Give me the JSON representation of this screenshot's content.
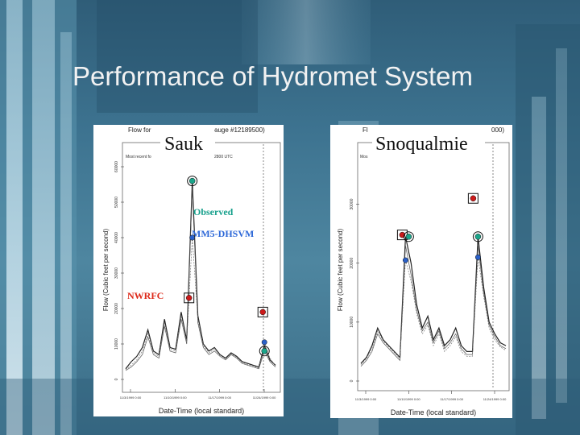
{
  "slide": {
    "title": "Performance of Hydromet System"
  },
  "chart_data": [
    {
      "type": "line",
      "station_label": "Sauk",
      "header_text": "Flow for",
      "header_text_right": "auge #12189500)",
      "subheader_text": "Most recent fo",
      "subheader_text_right": "2800 UTC",
      "xlabel": "Date-Time (local standard)",
      "ylabel": "Flow (Cubic feet per second)",
      "ylim": [
        0,
        60000
      ],
      "y_ticks": [
        "0",
        "10000",
        "20000",
        "30000",
        "40000",
        "50000",
        "60000"
      ],
      "x_ticks": [
        "11/3/1999 0:00",
        "11/10/1999 0:00",
        "11/17/1999 0:00",
        "11/24/1999 0:00"
      ],
      "legend": {
        "observed": "Observed",
        "model": "MM5-DHSVM",
        "nwrfc": "NWRFC"
      },
      "series": [
        {
          "values": [
            3000,
            5000,
            6500,
            9000,
            14000,
            8000,
            7000,
            17000,
            9000,
            8500,
            19000,
            11000,
            56000,
            18000,
            10000,
            8000,
            9000,
            7000,
            6000,
            7500,
            6500,
            5000,
            4500,
            4000,
            3500,
            9500,
            5500,
            4000
          ]
        },
        {
          "values": [
            2500,
            3500,
            5000,
            7000,
            12000,
            7000,
            6000,
            15000,
            8000,
            7500,
            17000,
            10000,
            54000,
            16000,
            9000,
            7000,
            8000,
            6500,
            5500,
            7000,
            6000,
            4500,
            4000,
            3500,
            3000,
            8000,
            5000,
            3500
          ]
        },
        {
          "values": [
            2800,
            4000,
            5500,
            8000,
            13000,
            7500,
            6500,
            16000,
            8500,
            8000,
            18000,
            10500,
            40000,
            17000,
            9500,
            7500,
            8500,
            6800,
            5800,
            7200,
            6200,
            4800,
            4200,
            3800,
            3200,
            10500,
            6000,
            3800
          ]
        }
      ],
      "markers": {
        "observed_peaks": [
          56000,
          8000
        ],
        "model_peaks": [
          40000,
          10500
        ],
        "nwrfc_peaks": [
          23000,
          19000
        ]
      }
    },
    {
      "type": "line",
      "station_label": "Snoqualmie",
      "header_text": "Fl",
      "header_text_right": "000)",
      "subheader_text": "Mos",
      "xlabel": "Date-Time (local standard)",
      "ylabel": "Flow (Cubic feet per second)",
      "ylim": [
        0,
        35000
      ],
      "y_ticks": [
        "0",
        "10000",
        "20000",
        "30000"
      ],
      "x_ticks": [
        "11/3/1999 0:00",
        "11/10/1999 0:00",
        "11/17/1999 0:00",
        "11/24/1999 0:00"
      ],
      "series": [
        {
          "values": [
            3000,
            4000,
            6000,
            9000,
            7000,
            6000,
            5000,
            4000,
            24500,
            20000,
            13000,
            9000,
            11000,
            7000,
            9000,
            6000,
            7000,
            9000,
            6000,
            5000,
            5000,
            24500,
            16000,
            10000,
            8000,
            6500,
            6000
          ]
        },
        {
          "values": [
            2500,
            3500,
            5000,
            8000,
            6500,
            5500,
            4500,
            3500,
            23000,
            18000,
            12000,
            8500,
            10000,
            6500,
            8500,
            5500,
            6500,
            8000,
            5500,
            4500,
            4500,
            23000,
            15000,
            9500,
            7500,
            6000,
            5500
          ]
        },
        {
          "values": [
            2800,
            3800,
            5500,
            8500,
            6800,
            5800,
            4800,
            3800,
            20500,
            17000,
            11500,
            8000,
            9500,
            6000,
            8000,
            5000,
            6000,
            7500,
            5000,
            4200,
            4200,
            21000,
            14500,
            9000,
            7000,
            5800,
            5200
          ]
        }
      ],
      "markers": {
        "observed_peaks": [
          24500,
          24500
        ],
        "model_peaks": [
          20500,
          21000
        ],
        "nwrfc_peaks": [
          24800,
          31000
        ]
      }
    }
  ],
  "colors": {
    "observed": "#1aa58a",
    "model": "#2a60c8",
    "nwrfc": "#cc1a1a",
    "legend_observed_text": "#17a08c",
    "legend_model_text": "#2d68d8",
    "legend_nwrfc_text": "#dd2a1a"
  }
}
